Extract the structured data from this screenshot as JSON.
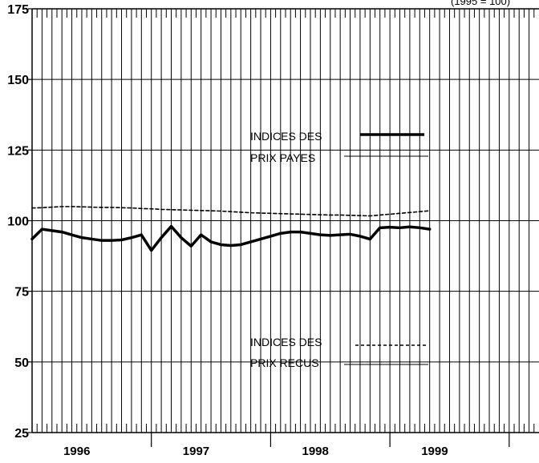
{
  "chart_data": {
    "type": "line",
    "title": "",
    "corner_note": "(1995 = 100)",
    "xlabel": "",
    "ylabel": "",
    "ylim": [
      25,
      175
    ],
    "yticks": [
      25,
      50,
      75,
      100,
      125,
      150,
      175
    ],
    "ytick_labels": [
      "25",
      "50",
      "75",
      "100",
      "125",
      "150",
      "175"
    ],
    "xlim": [
      0,
      51
    ],
    "xgroup_labels": [
      "1996",
      "1997",
      "1998",
      "1999"
    ],
    "grid": true,
    "legend_placement": "inside-center",
    "x": [
      0,
      1,
      2,
      3,
      4,
      5,
      6,
      7,
      8,
      9,
      10,
      11,
      12,
      13,
      14,
      15,
      16,
      17,
      18,
      19,
      20,
      21,
      22,
      23,
      24,
      25,
      26,
      27,
      28,
      29,
      30,
      31,
      32,
      33,
      34,
      35,
      36,
      37,
      38,
      39,
      40
    ],
    "series": [
      {
        "name": "INDICES DES PRIX PAYES",
        "legend_lines": [
          "INDICES DES",
          "PRIX PAYES"
        ],
        "style": "solid",
        "values": [
          93.5,
          97,
          96.5,
          96,
          95,
          94,
          93.5,
          93,
          93,
          93.2,
          94,
          95,
          89.5,
          94,
          98,
          94,
          91,
          95,
          92.5,
          91.5,
          91.2,
          91.5,
          92.5,
          93.5,
          94.5,
          95.5,
          96,
          96,
          95.5,
          95,
          94.8,
          95,
          95.2,
          94.5,
          93.5,
          97.5,
          97.7,
          97.5,
          97.8,
          97.5,
          97
        ]
      },
      {
        "name": "INDICES DES PRIX RECUS",
        "legend_lines": [
          "INDICES DES",
          "PRIX RECUS"
        ],
        "style": "dashed",
        "values": [
          104.5,
          104.6,
          104.8,
          105,
          105,
          104.9,
          104.8,
          104.7,
          104.7,
          104.6,
          104.5,
          104.3,
          104.2,
          104,
          103.9,
          103.8,
          103.7,
          103.6,
          103.5,
          103.4,
          103.2,
          103,
          102.8,
          102.7,
          102.6,
          102.5,
          102.4,
          102.3,
          102.2,
          102.1,
          102,
          102,
          101.9,
          101.8,
          101.7,
          102,
          102.3,
          102.6,
          102.9,
          103.2,
          103.5
        ]
      }
    ],
    "colors": {
      "line": "#000000",
      "grid": "#000000",
      "background": "#ffffff"
    }
  }
}
